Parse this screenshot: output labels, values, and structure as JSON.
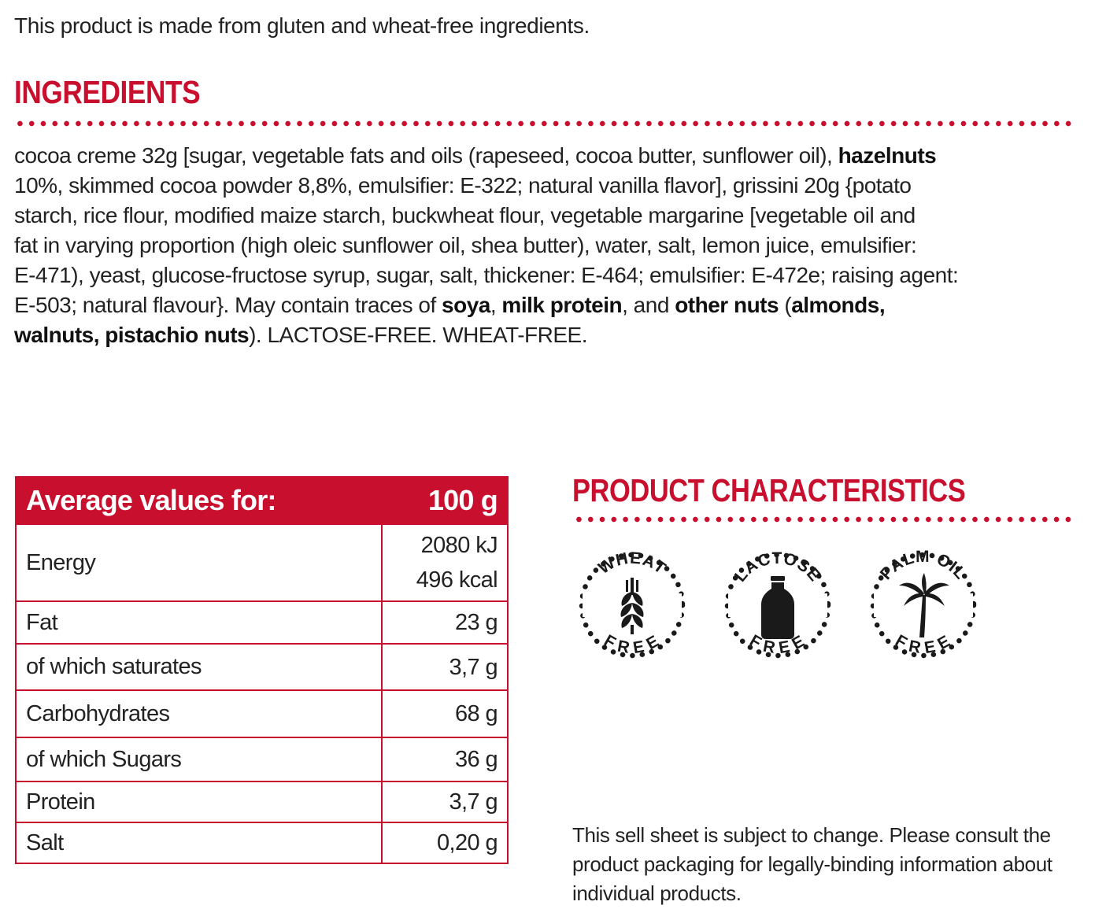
{
  "intro": "This product is made from gluten and wheat-free ingredients.",
  "ingredients": {
    "heading": "INGREDIENTS",
    "lines": [
      [
        {
          "t": "cocoa creme 32g [sugar, vegetable fats and oils (rapeseed, cocoa butter, sunflower oil), ",
          "b": false
        },
        {
          "t": "hazelnuts",
          "b": true
        }
      ],
      [
        {
          "t": "10%, skimmed cocoa powder 8,8%, emulsifier: E-322; natural vanilla flavor], grissini 20g {potato",
          "b": false
        }
      ],
      [
        {
          "t": "starch, rice flour, modified maize starch, buckwheat flour, vegetable margarine [vegetable oil and",
          "b": false
        }
      ],
      [
        {
          "t": "fat in varying proportion (high oleic sunflower oil, shea butter), water, salt, lemon juice, emulsifier:",
          "b": false
        }
      ],
      [
        {
          "t": "E-471), yeast, glucose-fructose syrup, sugar, salt, thickener: E-464; emulsifier: E-472e; raising agent:",
          "b": false
        }
      ],
      [
        {
          "t": "E-503; natural flavour}. May contain traces of ",
          "b": false
        },
        {
          "t": "soya",
          "b": true
        },
        {
          "t": ", ",
          "b": false
        },
        {
          "t": "milk protein",
          "b": true
        },
        {
          "t": ", and ",
          "b": false
        },
        {
          "t": "other nuts",
          "b": true
        },
        {
          "t": " (",
          "b": false
        },
        {
          "t": "almonds,",
          "b": true
        }
      ],
      [
        {
          "t": "walnuts, pistachio nuts",
          "b": true
        },
        {
          "t": "). LACTOSE-FREE. WHEAT-FREE.",
          "b": false
        }
      ]
    ]
  },
  "nutrition": {
    "header_label": "Average values for:",
    "header_value": "100 g",
    "rows": [
      {
        "label": "Energy",
        "value": "2080 kJ",
        "value2": "496 kcal"
      },
      {
        "label": "Fat",
        "value": "23 g"
      },
      {
        "label": "of which saturates",
        "value": "3,7 g"
      },
      {
        "label": "Carbohydrates",
        "value": "68 g"
      },
      {
        "label": "of which Sugars",
        "value": "36 g"
      },
      {
        "label": "Protein",
        "value": "3,7 g"
      },
      {
        "label": "Salt",
        "value": "0,20 g"
      }
    ]
  },
  "characteristics": {
    "heading": "PRODUCT CHARACTERISTICS",
    "badges": [
      {
        "top": "WHEAT",
        "bottom": "FREE",
        "icon": "wheat-icon"
      },
      {
        "top": "LACTOSE",
        "bottom": "FREE",
        "icon": "milk-bottle-icon"
      },
      {
        "top": "PALM OIL",
        "bottom": "FREE",
        "icon": "palm-tree-icon"
      }
    ]
  },
  "disclaimer": "This sell sheet is subject to change. Please consult the product packaging for legally-binding information about individual products.",
  "colors": {
    "accent": "#c8102e",
    "text": "#222222"
  }
}
